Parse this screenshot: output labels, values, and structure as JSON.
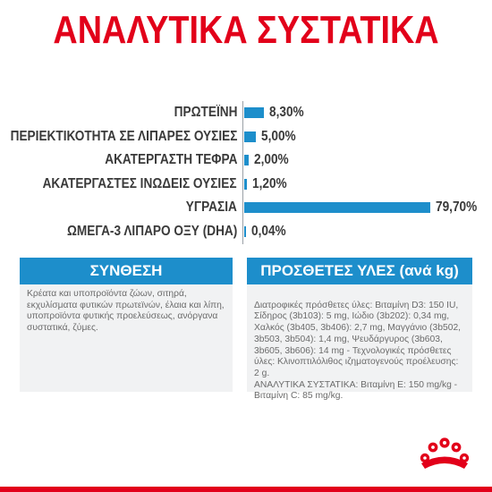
{
  "title": "ΑΝΑΛΥΤΙΚΑ ΣΥΣΤΑΤΙΚΑ",
  "colors": {
    "brand_red": "#e2001a",
    "bar_blue": "#1d8ecb",
    "panel_grey": "#f1f2f3"
  },
  "chart_data": {
    "type": "bar",
    "orientation": "horizontal",
    "title": "ΑΝΑΛΥΤΙΚΑ ΣΥΣΤΑΤΙΚΑ",
    "categories": [
      "ΠΡΩΤΕΪΝΗ",
      "ΠΕΡΙΕΚΤΙΚΟΤΗΤΑ ΣΕ ΛΙΠΑΡΕΣ ΟΥΣΙΕΣ",
      "ΑΚΑΤΕΡΓΑΣΤΗ ΤΕΦΡΑ",
      "ΑΚΑΤΕΡΓΑΣΤΕΣ ΙΝΩΔΕΙΣ ΟΥΣΙΕΣ",
      "ΥΓΡΑΣΙΑ",
      "ΩΜΕΓΑ-3 ΛΙΠΑΡΟ ΟΞΥ (DHA)"
    ],
    "values": [
      8.3,
      5.0,
      2.0,
      1.2,
      79.7,
      0.04
    ],
    "value_labels": [
      "8,30%",
      "5,00%",
      "2,00%",
      "1,20%",
      "79,70%",
      "0,04%"
    ],
    "xlim": [
      0,
      79.7
    ],
    "grid": false
  },
  "composition": {
    "heading": "ΣΥΝΘΕΣΗ",
    "text": "Κρέατα και υποπροϊόντα ζώων, σιτηρά, εκχυλίσματα φυτικών πρωτεϊνών, έλαια και λίπη, υποπροϊόντα φυτικής προελεύσεως, ανόργανα συστατικά, ζύμες."
  },
  "additives": {
    "heading": "ΠΡΟΣΘΕΤΕΣ ΥΛΕΣ (ανά kg)",
    "text": "Διατροφικές πρόσθετες ύλες: Βιταμίνη D3: 150 IU, Σίδηρος (3b103): 5 mg, Ιώδιο (3b202): 0,34 mg, Χαλκός (3b405, 3b406): 2,7 mg, Μαγγάνιο (3b502, 3b503, 3b504): 1,4 mg, Ψευδάργυρος (3b603, 3b605, 3b606): 14 mg - Τεχνολογικές πρόσθετες ύλες: Κλινοπτιλόλιθος ιζηματογενούς προέλευσης: 2 g.\nΑΝΑΛΥΤΙΚΑ ΣΥΣΤΑΤΙΚΑ: Βιταμίνη E: 150 mg/kg - Βιταμίνη C: 85 mg/kg."
  },
  "logo": {
    "icon": "royal-canin-crown-icon"
  }
}
